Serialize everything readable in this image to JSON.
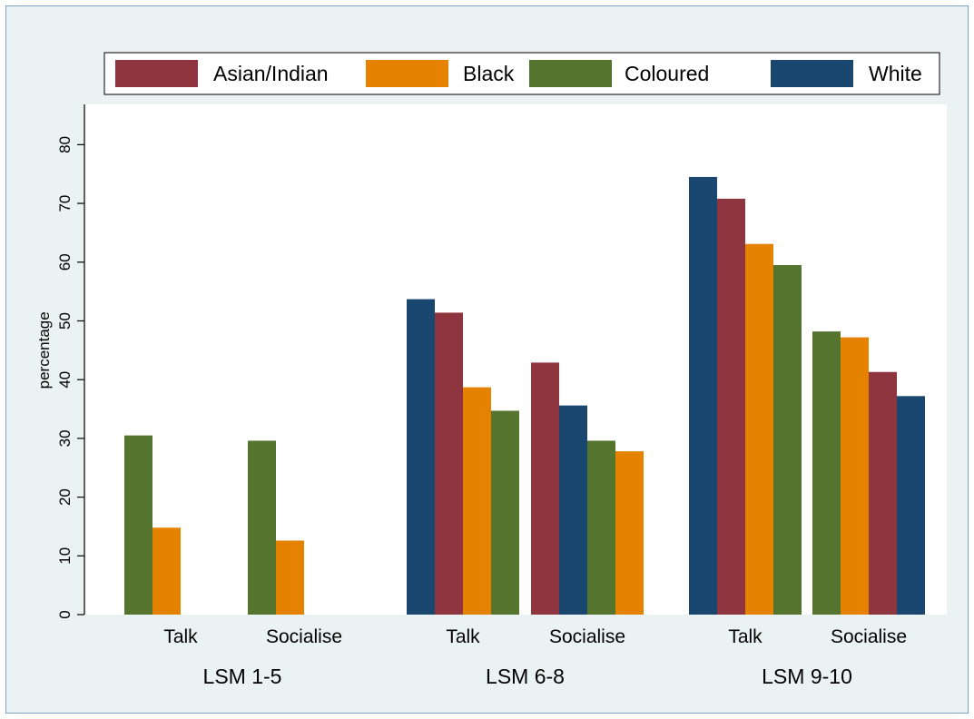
{
  "chart_data": {
    "type": "bar",
    "title": "",
    "xlabel": "",
    "ylabel": "percentage",
    "ylim": [
      0,
      85
    ],
    "yticks": [
      0,
      10,
      20,
      30,
      40,
      50,
      60,
      70,
      80
    ],
    "legend": {
      "position": "top",
      "orientation": "horizontal"
    },
    "grid": false,
    "series": [
      {
        "name": "Asian/Indian",
        "color": "#8e353f"
      },
      {
        "name": "Black",
        "color": "#e58200"
      },
      {
        "name": "Coloured",
        "color": "#55752f"
      },
      {
        "name": "White",
        "color": "#1a476f"
      }
    ],
    "groups": [
      {
        "label": "LSM 1-5",
        "subgroups": [
          {
            "label": "Talk",
            "bars": [
              {
                "series": "Coloured",
                "value": 30.5
              },
              {
                "series": "Black",
                "value": 14.8
              }
            ]
          },
          {
            "label": "Socialise",
            "bars": [
              {
                "series": "Coloured",
                "value": 29.6
              },
              {
                "series": "Black",
                "value": 12.6
              }
            ]
          }
        ]
      },
      {
        "label": "LSM 6-8",
        "subgroups": [
          {
            "label": "Talk",
            "bars": [
              {
                "series": "White",
                "value": 53.7
              },
              {
                "series": "Asian/Indian",
                "value": 51.4
              },
              {
                "series": "Black",
                "value": 38.7
              },
              {
                "series": "Coloured",
                "value": 34.7
              }
            ]
          },
          {
            "label": "Socialise",
            "bars": [
              {
                "series": "Asian/Indian",
                "value": 42.9
              },
              {
                "series": "White",
                "value": 35.6
              },
              {
                "series": "Coloured",
                "value": 29.6
              },
              {
                "series": "Black",
                "value": 27.8
              }
            ]
          }
        ]
      },
      {
        "label": "LSM 9-10",
        "subgroups": [
          {
            "label": "Talk",
            "bars": [
              {
                "series": "White",
                "value": 74.5
              },
              {
                "series": "Asian/Indian",
                "value": 70.8
              },
              {
                "series": "Black",
                "value": 63.1
              },
              {
                "series": "Coloured",
                "value": 59.5
              }
            ]
          },
          {
            "label": "Socialise",
            "bars": [
              {
                "series": "Coloured",
                "value": 48.2
              },
              {
                "series": "Black",
                "value": 47.2
              },
              {
                "series": "Asian/Indian",
                "value": 41.3
              },
              {
                "series": "White",
                "value": 37.2
              }
            ]
          }
        ]
      }
    ]
  }
}
